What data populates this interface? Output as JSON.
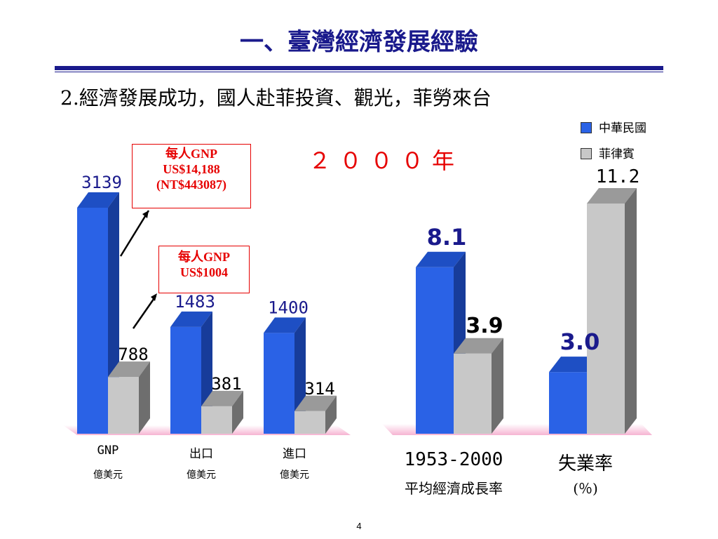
{
  "slide": {
    "title": "一、臺灣經濟發展經驗",
    "subtitle": "2.經濟發展成功，國人赴菲投資、觀光，菲勞來台",
    "year_label": "２０００年",
    "page_number": "4"
  },
  "legend": [
    {
      "label": "中華民國",
      "color": "#2a62e6"
    },
    {
      "label": "菲律賓",
      "color": "#c8c8c8"
    }
  ],
  "callouts": [
    {
      "line1": "每人GNP",
      "line2": "US$14,188",
      "line3": "(NT$443087)"
    },
    {
      "line1": "每人GNP",
      "line2": "US$1004"
    }
  ],
  "colors": {
    "roc": "#2a62e6",
    "phl": "#c8c8c8",
    "accent_red": "#e60000",
    "title_blue": "#1a1a8c"
  },
  "chart_data": [
    {
      "type": "bar",
      "categories": [
        "GNP",
        "出口",
        "進口"
      ],
      "category_units": [
        "億美元",
        "億美元",
        "億美元"
      ],
      "series": [
        {
          "name": "中華民國",
          "values": [
            3139,
            1483,
            1400
          ]
        },
        {
          "name": "菲律賓",
          "values": [
            788,
            381,
            314
          ]
        }
      ],
      "value_labels": [
        [
          "3139",
          "1483",
          "1400"
        ],
        [
          "788",
          "381",
          "314"
        ]
      ],
      "ylim": [
        0,
        3400
      ]
    },
    {
      "type": "bar",
      "categories": [
        "1953-2000",
        "失業率"
      ],
      "category_sub": [
        "平均經濟成長率",
        "(％)"
      ],
      "series": [
        {
          "name": "中華民國",
          "values": [
            8.1,
            3.0
          ]
        },
        {
          "name": "菲律賓",
          "values": [
            3.9,
            11.2
          ]
        }
      ],
      "value_labels": [
        [
          "8.1",
          "3.0"
        ],
        [
          "3.9",
          "11.2"
        ]
      ],
      "ylim": [
        0,
        12
      ]
    }
  ]
}
